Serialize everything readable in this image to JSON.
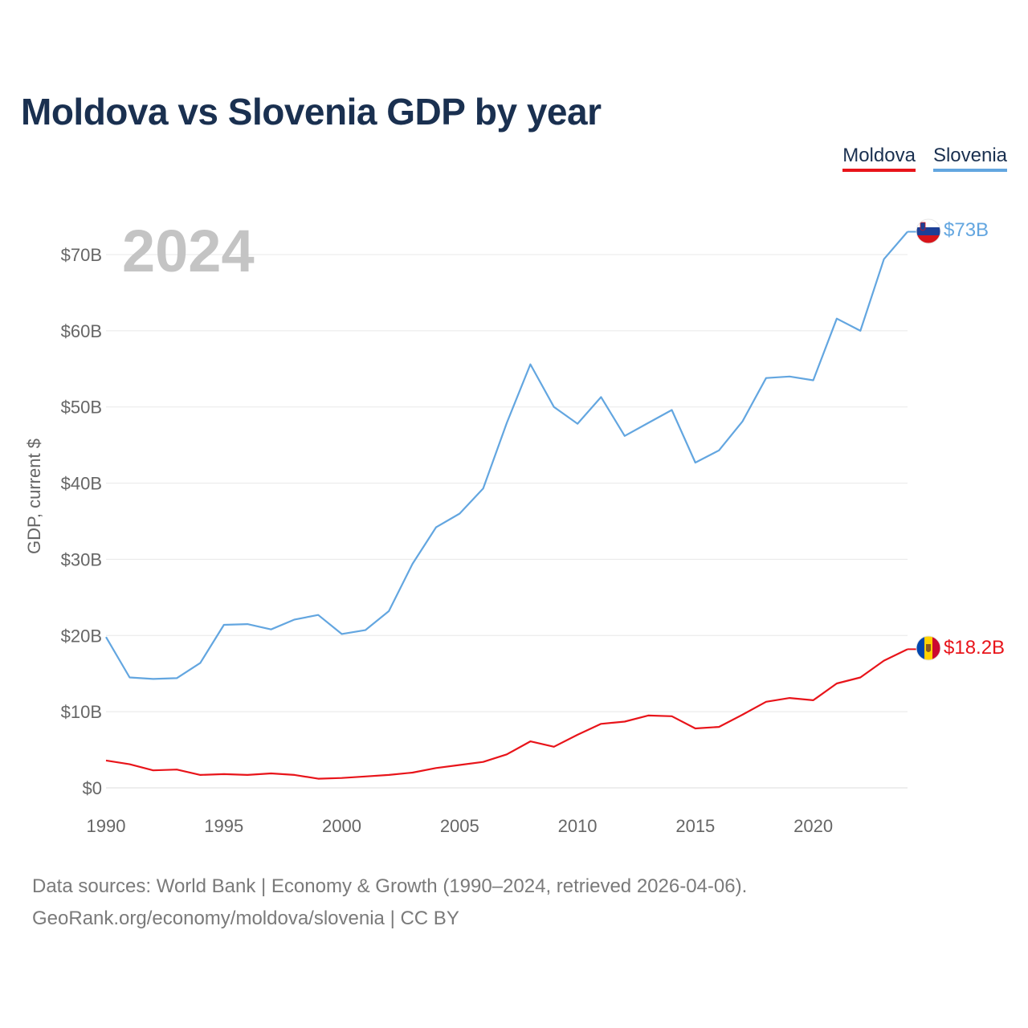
{
  "chart_data": {
    "type": "line",
    "title": "Moldova vs Slovenia GDP by year",
    "year_label": "2024",
    "ylabel": "GDP, current $",
    "xlabel": "",
    "ylim": [
      0,
      75
    ],
    "xlim": [
      1990,
      2024
    ],
    "yticks": [
      0,
      10,
      20,
      30,
      40,
      50,
      60,
      70
    ],
    "ytick_labels": [
      "$0",
      "$10B",
      "$20B",
      "$30B",
      "$40B",
      "$50B",
      "$60B",
      "$70B"
    ],
    "xticks": [
      1990,
      1995,
      2000,
      2005,
      2010,
      2015,
      2020
    ],
    "xtick_labels": [
      "1990",
      "1995",
      "2000",
      "2005",
      "2010",
      "2015",
      "2020"
    ],
    "grid": true,
    "legend": "top-right",
    "x": [
      1990,
      1991,
      1992,
      1993,
      1994,
      1995,
      1996,
      1997,
      1998,
      1999,
      2000,
      2001,
      2002,
      2003,
      2004,
      2005,
      2006,
      2007,
      2008,
      2009,
      2010,
      2011,
      2012,
      2013,
      2014,
      2015,
      2016,
      2017,
      2018,
      2019,
      2020,
      2021,
      2022,
      2023,
      2024
    ],
    "series": [
      {
        "name": "Moldova",
        "color": "#e8141a",
        "end_label": "$18.2B",
        "flag": "moldova-flag",
        "values": [
          3.6,
          3.1,
          2.3,
          2.4,
          1.7,
          1.8,
          1.7,
          1.9,
          1.7,
          1.2,
          1.3,
          1.5,
          1.7,
          2.0,
          2.6,
          3.0,
          3.4,
          4.4,
          6.1,
          5.4,
          6.97,
          8.4,
          8.7,
          9.5,
          9.4,
          7.8,
          8.0,
          9.6,
          11.3,
          11.8,
          11.5,
          13.7,
          14.5,
          16.7,
          18.2
        ]
      },
      {
        "name": "Slovenia",
        "color": "#63a6e0",
        "end_label": "$73B",
        "flag": "slovenia-flag",
        "values": [
          19.8,
          14.5,
          14.3,
          14.4,
          16.4,
          21.4,
          21.5,
          20.8,
          22.1,
          22.7,
          20.2,
          20.7,
          23.2,
          29.4,
          34.2,
          36.0,
          39.3,
          47.9,
          55.6,
          50.0,
          47.8,
          51.3,
          46.2,
          47.9,
          49.6,
          42.7,
          44.3,
          48.1,
          53.8,
          54.0,
          53.5,
          61.6,
          60.0,
          69.4,
          73.0
        ]
      }
    ]
  },
  "footer": {
    "source_line": "Data sources: World Bank | Economy & Growth (1990–2024, retrieved 2026-04-06).",
    "url_line": "GeoRank.org/economy/moldova/slovenia | CC BY"
  }
}
